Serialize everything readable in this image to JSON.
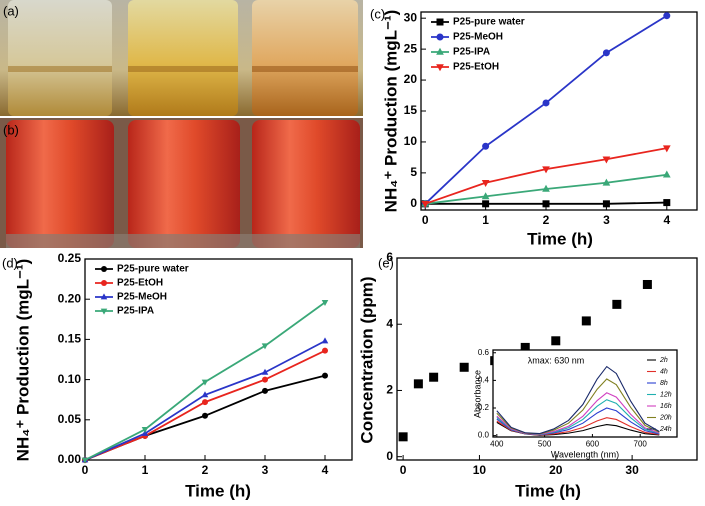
{
  "photos": [
    {
      "label": "(a)"
    },
    {
      "label": "(b)"
    }
  ],
  "chart_data": [
    {
      "type": "line",
      "panel_label": "(c)",
      "xlabel": "Time (h)",
      "ylabel": "NH₄⁺ Production (mgL⁻¹)",
      "x": [
        0,
        1,
        2,
        3,
        4
      ],
      "xlim": [
        -0.07,
        4.5
      ],
      "xticks": [
        0,
        1,
        2,
        3,
        4
      ],
      "ylim": [
        -1,
        31
      ],
      "yticks": [
        0,
        5,
        10,
        15,
        20,
        25,
        30
      ],
      "legend": "upper left",
      "series": [
        {
          "name": "P25-pure water",
          "color": "#000000",
          "marker": "square",
          "values": [
            0,
            0,
            0,
            0,
            0.2
          ]
        },
        {
          "name": "P25-MeOH",
          "color": "#2a35c8",
          "marker": "circle",
          "values": [
            0,
            9.3,
            16.3,
            24.4,
            30.4
          ]
        },
        {
          "name": "P25-IPA",
          "color": "#3aa878",
          "marker": "triangle-up",
          "values": [
            0,
            1.2,
            2.4,
            3.4,
            4.7
          ]
        },
        {
          "name": "P25-EtOH",
          "color": "#e8251e",
          "marker": "triangle-down",
          "values": [
            0,
            3.4,
            5.6,
            7.2,
            9.0
          ]
        }
      ]
    },
    {
      "type": "line",
      "panel_label": "(d)",
      "xlabel": "Time (h)",
      "ylabel": "NH₄⁺ Production (mgL⁻¹)",
      "x": [
        0,
        1,
        2,
        3,
        4
      ],
      "xlim": [
        0,
        4.45
      ],
      "xticks": [
        0,
        1,
        2,
        3,
        4
      ],
      "ylim": [
        0,
        0.25
      ],
      "yticks": [
        {
          "value": 0,
          "label": "0.00"
        },
        {
          "value": 0.05,
          "label": "0.05"
        },
        {
          "value": 0.1,
          "label": "0.10"
        },
        {
          "value": 0.15,
          "label": "0.15"
        },
        {
          "value": 0.2,
          "label": "0.20"
        },
        {
          "value": 0.25,
          "label": "0.25"
        }
      ],
      "legend": "upper left",
      "series": [
        {
          "name": "P25-pure water",
          "color": "#000000",
          "marker": "circle",
          "values": [
            0,
            0.03,
            0.055,
            0.086,
            0.105
          ]
        },
        {
          "name": "P25-EtOH",
          "color": "#e8251e",
          "marker": "circle",
          "values": [
            0,
            0.03,
            0.072,
            0.1,
            0.136
          ]
        },
        {
          "name": "P25-MeOH",
          "color": "#2a35c8",
          "marker": "triangle-up",
          "values": [
            0,
            0.033,
            0.081,
            0.109,
            0.148
          ]
        },
        {
          "name": "P25-IPA",
          "color": "#3aa878",
          "marker": "triangle-down",
          "values": [
            0,
            0.038,
            0.097,
            0.142,
            0.196
          ]
        }
      ]
    },
    {
      "type": "scatter",
      "panel_label": "(e)",
      "xlabel": "Time (h)",
      "ylabel": "Concentration (ppm)",
      "x": [
        0,
        2,
        4,
        8,
        12,
        16,
        20,
        24,
        28,
        32
      ],
      "xlim": [
        -0.8,
        38.5
      ],
      "xticks": [
        0,
        10,
        20,
        30
      ],
      "ylim": [
        -0.1,
        6
      ],
      "yticks": [
        0,
        2,
        4,
        6
      ],
      "color": "#000000",
      "marker": "square",
      "values": [
        0.6,
        2.2,
        2.4,
        2.7,
        2.9,
        3.3,
        3.5,
        4.1,
        4.6,
        5.2
      ]
    },
    {
      "type": "line",
      "xlabel": "Wavelength (nm)",
      "ylabel": "Absorbance",
      "annotation": "λmax: 630 nm",
      "x": [
        400,
        430,
        460,
        490,
        520,
        550,
        580,
        610,
        630,
        650,
        680,
        710,
        740
      ],
      "xlim": [
        392,
        777
      ],
      "xticks": [
        400,
        500,
        600,
        700
      ],
      "ylim": [
        -0.01,
        0.62
      ],
      "yticks": [
        {
          "value": 0,
          "label": "0.0"
        },
        {
          "value": 0.2,
          "label": "0.2"
        },
        {
          "value": 0.4,
          "label": "0.4"
        },
        {
          "value": 0.6,
          "label": "0.6"
        }
      ],
      "legend": "upper right",
      "series": [
        {
          "name": "2h",
          "color": "#000000",
          "values": [
            0.096,
            0.035,
            0.012,
            0.002,
            0.008,
            0.018,
            0.036,
            0.066,
            0.08,
            0.072,
            0.04,
            0.014,
            0.005
          ]
        },
        {
          "name": "4h",
          "color": "#e0302a",
          "values": [
            0.106,
            0.038,
            0.013,
            0.004,
            0.013,
            0.029,
            0.059,
            0.107,
            0.13,
            0.117,
            0.065,
            0.023,
            0.008
          ]
        },
        {
          "name": "8h",
          "color": "#2a3fd0",
          "values": [
            0.12,
            0.042,
            0.014,
            0.006,
            0.02,
            0.044,
            0.09,
            0.164,
            0.2,
            0.18,
            0.1,
            0.036,
            0.012
          ]
        },
        {
          "name": "12h",
          "color": "#1fb0b0",
          "values": [
            0.132,
            0.046,
            0.015,
            0.008,
            0.026,
            0.057,
            0.117,
            0.213,
            0.26,
            0.234,
            0.13,
            0.047,
            0.016
          ]
        },
        {
          "name": "16h",
          "color": "#d040c0",
          "values": [
            0.142,
            0.049,
            0.016,
            0.009,
            0.031,
            0.068,
            0.14,
            0.254,
            0.31,
            0.279,
            0.155,
            0.056,
            0.019
          ]
        },
        {
          "name": "20h",
          "color": "#808020",
          "values": [
            0.162,
            0.055,
            0.018,
            0.012,
            0.041,
            0.09,
            0.185,
            0.336,
            0.41,
            0.369,
            0.205,
            0.074,
            0.025
          ]
        },
        {
          "name": "24h",
          "color": "#1a2a6a",
          "values": [
            0.18,
            0.06,
            0.02,
            0.015,
            0.05,
            0.11,
            0.225,
            0.41,
            0.5,
            0.45,
            0.25,
            0.09,
            0.03
          ]
        }
      ]
    }
  ]
}
